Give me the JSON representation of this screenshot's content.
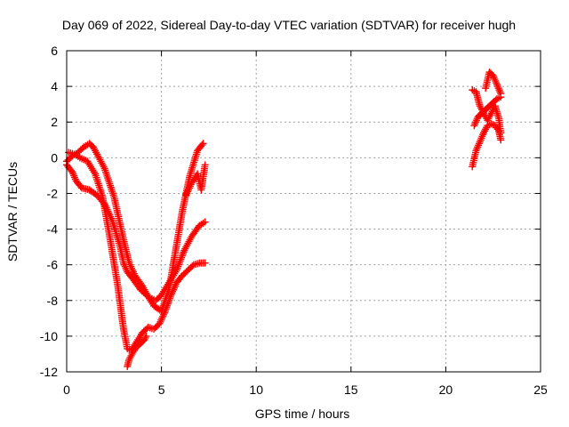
{
  "chart_data": {
    "type": "scatter",
    "title": "Day 069 of 2022, Sidereal Day-to-day VTEC variation (SDTVAR) for receiver hugh",
    "xlabel": "GPS time / hours",
    "ylabel": "SDTVAR / TECUs",
    "xlim": [
      0,
      25
    ],
    "ylim": [
      -12,
      6
    ],
    "xticks": [
      0,
      5,
      10,
      15,
      20,
      25
    ],
    "yticks": [
      -12,
      -10,
      -8,
      -6,
      -4,
      -2,
      0,
      2,
      4,
      6
    ],
    "grid": true,
    "legend": "none",
    "marker": "+",
    "color": "#ff0000",
    "traces": [
      {
        "x": [
          0.0,
          0.3,
          0.6,
          0.9,
          1.2,
          1.4,
          1.6,
          2.0,
          2.5,
          3.0,
          3.3,
          3.6,
          4.0,
          4.3,
          4.6,
          5.0,
          5.4,
          5.7,
          6.1,
          6.5,
          6.9,
          7.2
        ],
        "y": [
          -0.2,
          0.1,
          0.3,
          0.6,
          0.8,
          0.6,
          0.2,
          -0.6,
          -2.2,
          -4.6,
          -5.9,
          -6.6,
          -7.2,
          -7.8,
          -8.3,
          -8.6,
          -7.4,
          -5.5,
          -3.0,
          -1.0,
          0.4,
          0.8
        ]
      },
      {
        "x": [
          0.0,
          0.3,
          0.5,
          0.8,
          1.2,
          1.6,
          2.0,
          2.4,
          2.8,
          3.0,
          3.2,
          3.5,
          3.9,
          4.3,
          4.7,
          5.0,
          5.4,
          5.8,
          6.2,
          6.6,
          7.0,
          7.3
        ],
        "y": [
          -0.4,
          -0.8,
          -1.3,
          -1.7,
          -1.8,
          -2.1,
          -2.6,
          -3.5,
          -4.9,
          -5.9,
          -6.4,
          -6.8,
          -7.4,
          -7.8,
          -8.0,
          -7.7,
          -7.0,
          -6.3,
          -5.2,
          -4.4,
          -3.8,
          -3.6
        ]
      },
      {
        "x": [
          0.1,
          0.4,
          0.7,
          1.1,
          1.5,
          1.9,
          2.3,
          2.7,
          3.0,
          3.2,
          3.4,
          3.7,
          4.0,
          4.3,
          4.6,
          4.9,
          5.2,
          5.5,
          5.8,
          6.1,
          6.4,
          6.7,
          7.0,
          7.3
        ],
        "y": [
          0.3,
          0.2,
          0.0,
          -0.2,
          -0.9,
          -2.2,
          -4.6,
          -7.2,
          -9.6,
          -10.7,
          -10.8,
          -10.3,
          -9.8,
          -9.5,
          -9.6,
          -9.3,
          -8.6,
          -7.7,
          -7.0,
          -6.6,
          -6.3,
          -6.0,
          -5.9,
          -5.9
        ]
      },
      {
        "x": [
          3.2,
          3.3,
          3.5,
          3.7,
          3.9,
          4.1,
          4.2
        ],
        "y": [
          -11.7,
          -11.3,
          -10.9,
          -10.6,
          -10.4,
          -10.2,
          -10.0
        ]
      },
      {
        "x": [
          6.3,
          6.6,
          6.9,
          7.1,
          7.3
        ],
        "y": [
          -2.1,
          -1.4,
          -0.9,
          -1.8,
          -0.4
        ]
      },
      {
        "x": [
          21.4,
          21.6,
          21.8,
          22.0,
          22.2,
          22.4,
          22.6,
          22.8,
          22.9
        ],
        "y": [
          -0.5,
          0.4,
          0.9,
          1.4,
          1.8,
          1.9,
          1.8,
          1.5,
          1.0
        ]
      },
      {
        "x": [
          21.5,
          21.7,
          21.9,
          22.1,
          22.3,
          22.5,
          22.7,
          22.9
        ],
        "y": [
          1.8,
          2.3,
          2.5,
          2.7,
          2.9,
          3.1,
          3.3,
          3.4
        ]
      },
      {
        "x": [
          21.4,
          21.6,
          21.8,
          22.0,
          22.2,
          22.4,
          22.6,
          22.8,
          22.9
        ],
        "y": [
          3.8,
          3.7,
          2.9,
          2.5,
          2.1,
          2.5,
          2.9,
          2.2,
          1.4
        ]
      },
      {
        "x": [
          22.1,
          22.3,
          22.5,
          22.7,
          22.9
        ],
        "y": [
          3.9,
          4.8,
          4.6,
          4.1,
          3.6
        ]
      }
    ]
  }
}
